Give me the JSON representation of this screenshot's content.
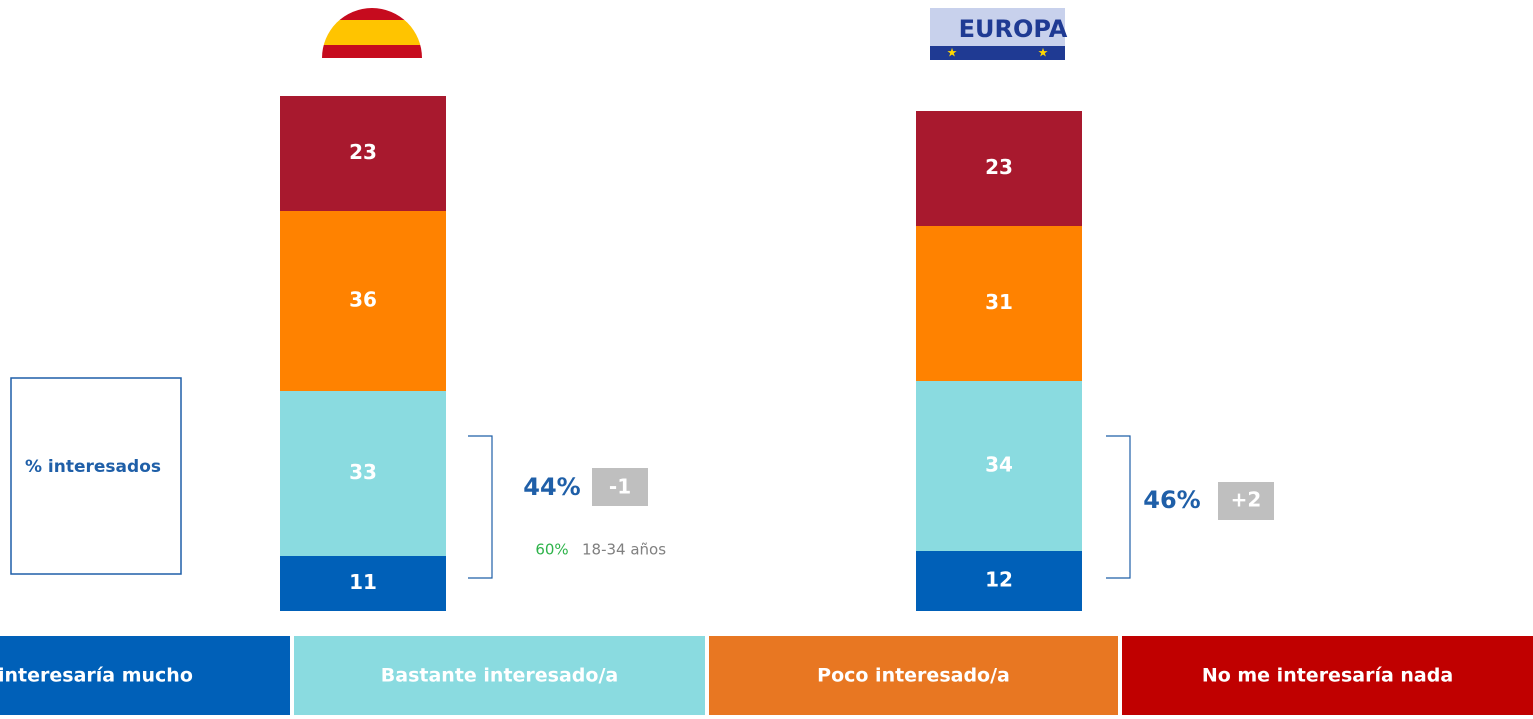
{
  "chart_data": {
    "type": "stacked-bar",
    "categories": [
      null,
      "EUROPA"
    ],
    "series": [
      {
        "name": "interesaría mucho",
        "color": "#0060b8",
        "values": [
          11,
          12
        ]
      },
      {
        "name": "Bastante interesado/a",
        "color": "#8adbe0",
        "values": [
          33,
          34
        ]
      },
      {
        "name": "Poco interesado/a",
        "color": "#ff8200",
        "values": [
          36,
          31
        ]
      },
      {
        "name": "No me interesaría nada",
        "color": "#a8192e",
        "values": [
          23,
          23
        ]
      }
    ],
    "legend_colors": [
      "#0060b8",
      "#8adbe0",
      "#e87722",
      "#c00000"
    ],
    "box_label": "% interesados",
    "groups": [
      {
        "total": "44%",
        "change": "-1",
        "age_value": "60%",
        "age_label": "18-34 años"
      },
      {
        "total": "46%",
        "change": "+2"
      }
    ]
  }
}
